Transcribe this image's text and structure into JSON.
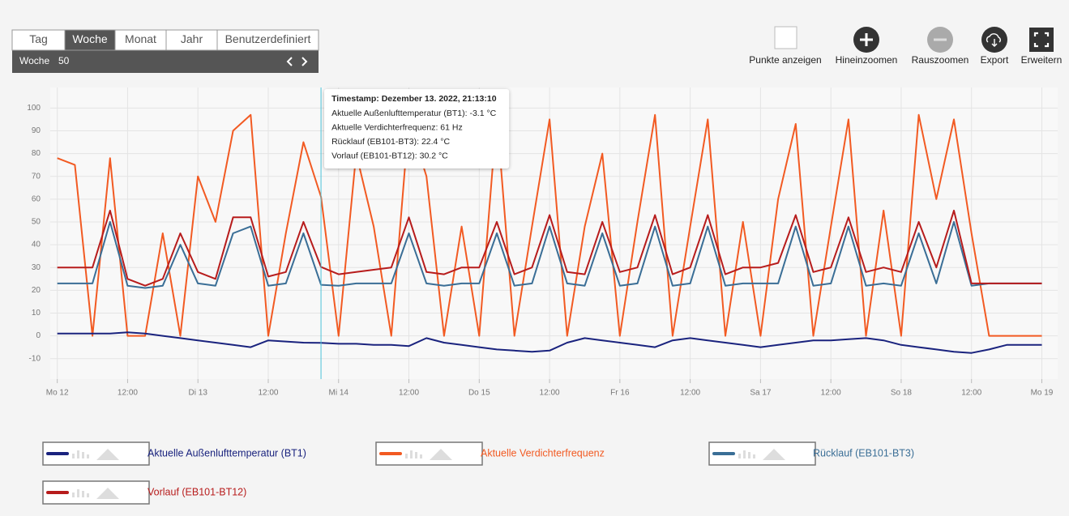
{
  "toolbar": {
    "tabs": [
      "Tag",
      "Woche",
      "Monat",
      "Jahr",
      "Benutzerdefiniert"
    ],
    "selected_tab": 1,
    "period_label": "Woche",
    "period_value": "50",
    "buttons": [
      "Punkte anzeigen",
      "Hineinzoomen",
      "Rauszoomen",
      "Export",
      "Erweitern"
    ]
  },
  "chart_data": {
    "type": "line",
    "x": [
      0,
      3,
      6,
      9,
      12,
      15,
      18,
      21,
      24,
      27,
      30,
      33,
      36,
      39,
      42,
      45,
      48,
      51,
      54,
      57,
      60,
      63,
      66,
      69,
      72,
      75,
      78,
      81,
      84,
      87,
      90,
      93,
      96,
      99,
      102,
      105,
      108,
      111,
      114,
      117,
      120,
      123,
      126,
      129,
      132,
      135,
      138,
      141,
      144,
      147,
      150,
      153,
      156,
      159,
      162,
      165,
      168
    ],
    "xlim": [
      -1.2,
      170.7
    ],
    "xticks": [
      {
        "value": 0,
        "label": "Mo 12"
      },
      {
        "value": 12,
        "label": "12:00"
      },
      {
        "value": 24,
        "label": "Di 13"
      },
      {
        "value": 36,
        "label": "12:00"
      },
      {
        "value": 48,
        "label": "Mi 14"
      },
      {
        "value": 60,
        "label": "12:00"
      },
      {
        "value": 72,
        "label": "Do 15"
      },
      {
        "value": 84,
        "label": "12:00"
      },
      {
        "value": 96,
        "label": "Fr 16"
      },
      {
        "value": 108,
        "label": "12:00"
      },
      {
        "value": 120,
        "label": "Sa 17"
      },
      {
        "value": 132,
        "label": "12:00"
      },
      {
        "value": 144,
        "label": "So 18"
      },
      {
        "value": 156,
        "label": "12:00"
      },
      {
        "value": 168,
        "label": "Mo 19"
      }
    ],
    "ylim": [
      -19,
      109
    ],
    "yticks": [
      -10,
      0,
      10,
      20,
      30,
      40,
      50,
      60,
      70,
      80,
      90,
      100
    ],
    "grid": true,
    "series": [
      {
        "name": "Aktuelle Verdichterfrequenz",
        "color": "#f25a22",
        "values": [
          78,
          75,
          0,
          78,
          0,
          0,
          45,
          0,
          70,
          50,
          90,
          97,
          0,
          45,
          85,
          61,
          0,
          80,
          48,
          0,
          95,
          70,
          0,
          48,
          0,
          97,
          0,
          48,
          95,
          0,
          48,
          80,
          0,
          50,
          97,
          0,
          48,
          95,
          0,
          50,
          0,
          60,
          93,
          0,
          48,
          95,
          0,
          55,
          0,
          97,
          60,
          95,
          45,
          0,
          0,
          0,
          0
        ]
      },
      {
        "name": "Rücklauf (EB101-BT3)",
        "color": "#3a6e96",
        "values": [
          23,
          23,
          23,
          50,
          22,
          21,
          22,
          40,
          23,
          22,
          45,
          48,
          22,
          23,
          45,
          22.4,
          22,
          23,
          23,
          23,
          45,
          23,
          22,
          23,
          23,
          45,
          22,
          23,
          48,
          23,
          22,
          45,
          22,
          23,
          48,
          22,
          23,
          48,
          22,
          23,
          23,
          23,
          48,
          22,
          23,
          48,
          22,
          23,
          22,
          45,
          23,
          50,
          22,
          23,
          23,
          23,
          23
        ]
      },
      {
        "name": "Vorlauf (EB101-BT12)",
        "color": "#b71c1c",
        "values": [
          30,
          30,
          30,
          55,
          25,
          22,
          25,
          45,
          28,
          25,
          52,
          52,
          26,
          28,
          50,
          30.2,
          27,
          28,
          29,
          30,
          52,
          28,
          27,
          30,
          30,
          50,
          27,
          30,
          53,
          28,
          27,
          50,
          28,
          30,
          53,
          27,
          30,
          53,
          27,
          30,
          30,
          32,
          53,
          28,
          30,
          52,
          28,
          30,
          28,
          50,
          30,
          55,
          23,
          23,
          23,
          23,
          23
        ]
      },
      {
        "name": "Aktuelle Außenlufttemperatur (BT1)",
        "color": "#1a237e",
        "values": [
          1,
          1,
          1,
          1,
          1.5,
          1,
          0,
          -1,
          -2,
          -3,
          -4,
          -5,
          -2,
          -2.5,
          -3,
          -3.1,
          -3.5,
          -3.5,
          -4,
          -4,
          -4.5,
          -1,
          -3,
          -4,
          -5,
          -6,
          -6.5,
          -7,
          -6.5,
          -3,
          -1,
          -2,
          -3,
          -4,
          -5,
          -2,
          -1,
          -2,
          -3,
          -4,
          -5,
          -4,
          -3,
          -2,
          -2,
          -1.5,
          -1,
          -2,
          -4,
          -5,
          -6,
          -7,
          -7.5,
          -6,
          -4,
          -4,
          -4
        ]
      }
    ],
    "legend_order": [
      3,
      0,
      1,
      2
    ],
    "tooltip": {
      "index": 15,
      "title": "Timestamp: Dezember 13. 2022, 21:13:10",
      "lines": [
        "Aktuelle Außenlufttemperatur (BT1): -3.1 °C",
        "Aktuelle Verdichterfrequenz: 61 Hz",
        "Rücklauf (EB101-BT3): 22.4 °C",
        "Vorlauf (EB101-BT12): 30.2 °C"
      ]
    }
  }
}
